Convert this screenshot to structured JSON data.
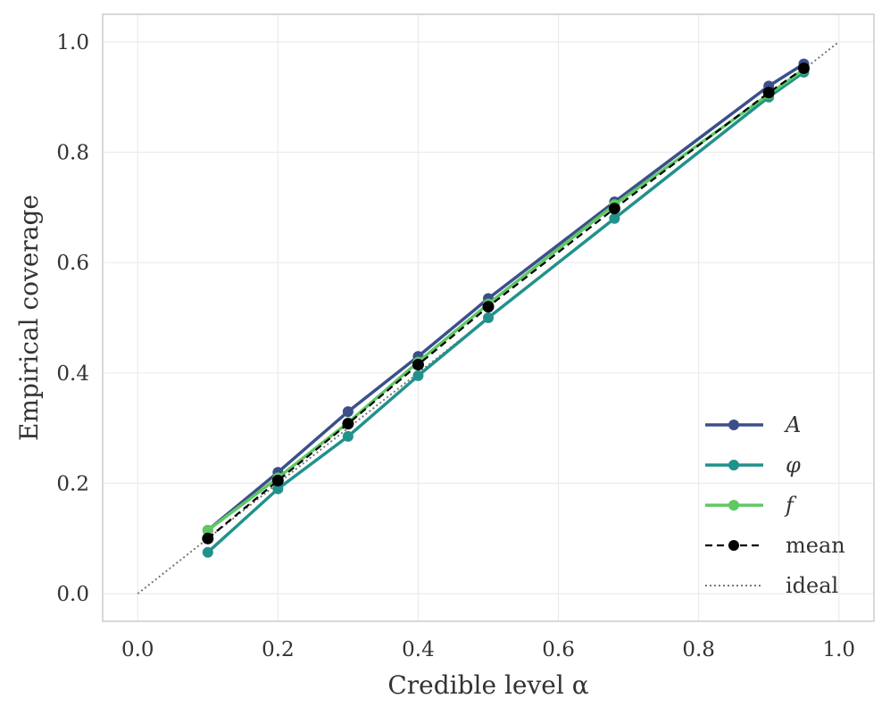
{
  "chart_data": {
    "type": "line",
    "xlabel": "Credible level α",
    "ylabel": "Empirical coverage",
    "xlim": [
      -0.05,
      1.05
    ],
    "ylim": [
      -0.05,
      1.05
    ],
    "xticks": [
      "0.0",
      "0.2",
      "0.4",
      "0.6",
      "0.8",
      "1.0"
    ],
    "yticks": [
      "0.0",
      "0.2",
      "0.4",
      "0.6",
      "0.8",
      "1.0"
    ],
    "grid": true,
    "legend_position": "bottom-right",
    "x": [
      0.1,
      0.2,
      0.3,
      0.4,
      0.5,
      0.68,
      0.9,
      0.95
    ],
    "series": [
      {
        "name": "A",
        "color": "#3b4f8a",
        "style": "solid-marker",
        "values": [
          0.115,
          0.22,
          0.33,
          0.43,
          0.535,
          0.71,
          0.92,
          0.96
        ]
      },
      {
        "name": "φ",
        "color": "#21918c",
        "style": "solid-marker",
        "values": [
          0.075,
          0.19,
          0.285,
          0.395,
          0.5,
          0.68,
          0.9,
          0.945
        ]
      },
      {
        "name": "f",
        "color": "#5ec962",
        "style": "solid-marker",
        "values": [
          0.115,
          0.21,
          0.31,
          0.42,
          0.525,
          0.705,
          0.905,
          0.95
        ]
      },
      {
        "name": "mean",
        "color": "#000000",
        "style": "dashed-marker",
        "values": [
          0.1,
          0.205,
          0.308,
          0.415,
          0.52,
          0.698,
          0.908,
          0.952
        ]
      }
    ],
    "reference": {
      "name": "ideal",
      "color": "#777777",
      "style": "dotted",
      "x": [
        0.0,
        1.0
      ],
      "values": [
        0.0,
        1.0
      ]
    }
  }
}
